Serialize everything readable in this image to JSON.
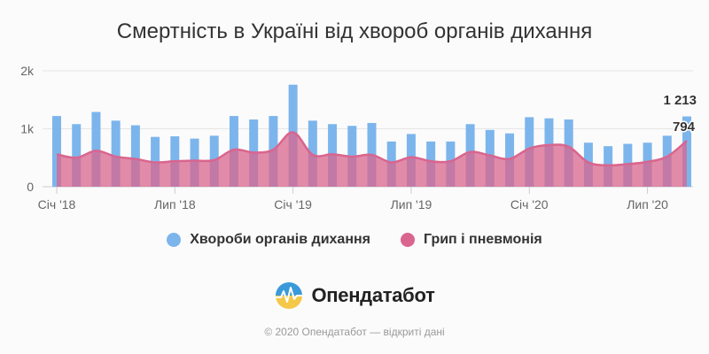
{
  "chart_data": {
    "type": "bar",
    "title": "Смертність в Україні від хвороб органів дихання",
    "x_tick_labels": [
      "Січ '18",
      "Лип '18",
      "Січ '19",
      "Лип '19",
      "Січ '20",
      "Лип '20"
    ],
    "y_tick_labels": [
      "0",
      "1k",
      "2k"
    ],
    "ylim": [
      0,
      2000
    ],
    "grid": true,
    "legend_position": "bottom",
    "categories": [
      "2018-01",
      "2018-02",
      "2018-03",
      "2018-04",
      "2018-05",
      "2018-06",
      "2018-07",
      "2018-08",
      "2018-09",
      "2018-10",
      "2018-11",
      "2018-12",
      "2019-01",
      "2019-02",
      "2019-03",
      "2019-04",
      "2019-05",
      "2019-06",
      "2019-07",
      "2019-08",
      "2019-09",
      "2019-10",
      "2019-11",
      "2019-12",
      "2020-01",
      "2020-02",
      "2020-03",
      "2020-04",
      "2020-05",
      "2020-06",
      "2020-07",
      "2020-08",
      "2020-09"
    ],
    "series": [
      {
        "name": "Хвороби органів дихання",
        "type": "bar",
        "color": "#7cb5ec",
        "values": [
          1220,
          1080,
          1290,
          1140,
          1060,
          860,
          870,
          830,
          880,
          1220,
          1160,
          1220,
          1760,
          1140,
          1080,
          1050,
          1100,
          780,
          910,
          780,
          780,
          1080,
          980,
          920,
          1200,
          1180,
          1160,
          760,
          700,
          740,
          760,
          880,
          1213
        ]
      },
      {
        "name": "Грип і пневмонія",
        "type": "area",
        "color": "#d9658e",
        "values": [
          560,
          500,
          620,
          520,
          480,
          420,
          440,
          450,
          460,
          640,
          590,
          640,
          940,
          550,
          560,
          520,
          550,
          420,
          510,
          440,
          440,
          600,
          540,
          480,
          660,
          720,
          690,
          420,
          370,
          390,
          430,
          520,
          794
        ]
      }
    ],
    "data_labels": [
      "1 213",
      "794"
    ]
  },
  "branding": {
    "logo_text": "Опендатабот",
    "credits": "© 2020 Опендатабот — відкриті дані"
  }
}
